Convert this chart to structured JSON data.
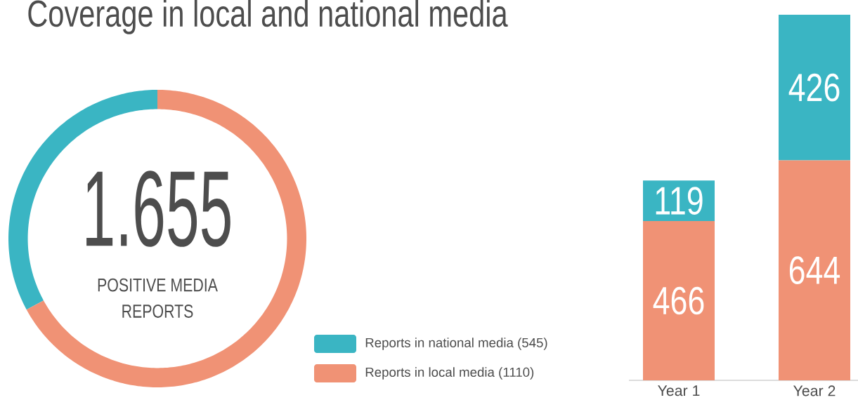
{
  "chart_data": [
    {
      "type": "donut",
      "title": "Coverage in local and national media",
      "categories": [
        "Reports in national media (545)",
        "Reports in local media (1110)"
      ],
      "values": [
        545,
        1110
      ],
      "colors": [
        "#3ab5c3",
        "#f09275"
      ],
      "annotations": [
        "1.655",
        "POSITIVE MEDIA REPORTS"
      ],
      "legend": "right"
    },
    {
      "type": "bar",
      "categories": [
        "Year 1",
        "Year 2"
      ],
      "stacked": true,
      "data_labels": true,
      "series": [
        {
          "color": "#f09275",
          "values": [
            466,
            644
          ]
        },
        {
          "color": "#3ab5c3",
          "values": [
            119,
            426
          ]
        }
      ]
    }
  ]
}
